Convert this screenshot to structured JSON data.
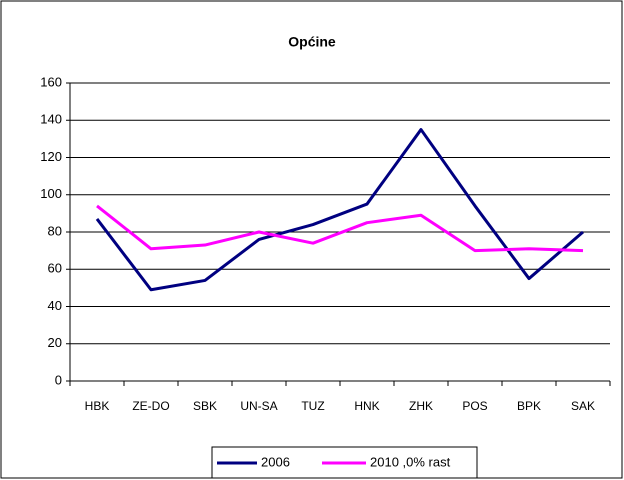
{
  "chart_data": {
    "type": "line",
    "title": "Općine",
    "categories": [
      "HBK",
      "ZE-DO",
      "SBK",
      "UN-SA",
      "TUZ",
      "HNK",
      "ZHK",
      "POS",
      "BPK",
      "SAK"
    ],
    "series": [
      {
        "name": "2006",
        "color": "#000080",
        "values": [
          87,
          49,
          54,
          76,
          84,
          95,
          135,
          94,
          55,
          80
        ]
      },
      {
        "name": "2010 ,0% rast",
        "color": "#ff00ff",
        "values": [
          94,
          71,
          73,
          80,
          74,
          85,
          89,
          70,
          71,
          70
        ]
      }
    ],
    "ylim": [
      0,
      160
    ],
    "yticks": [
      0,
      20,
      40,
      60,
      80,
      100,
      120,
      140,
      160
    ],
    "grid": true,
    "legend": "bottom"
  }
}
